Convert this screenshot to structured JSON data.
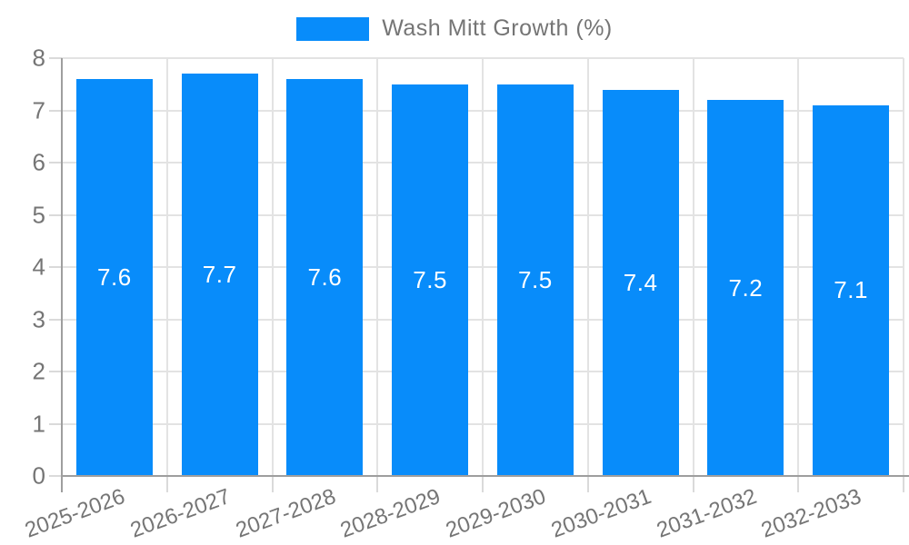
{
  "legend": {
    "items": [
      {
        "label": "Wash Mitt Growth (%)",
        "color": "#088cfa"
      }
    ]
  },
  "chart_data": {
    "type": "bar",
    "title": "",
    "categories": [
      "2025-2026",
      "2026-2027",
      "2027-2028",
      "2028-2029",
      "2029-2030",
      "2030-2031",
      "2031-2032",
      "2032-2033"
    ],
    "series": [
      {
        "name": "Wash Mitt Growth (%)",
        "values": [
          7.6,
          7.7,
          7.6,
          7.5,
          7.5,
          7.4,
          7.2,
          7.1
        ]
      }
    ],
    "data_labels": [
      "7.6",
      "7.7",
      "7.6",
      "7.5",
      "7.5",
      "7.4",
      "7.2",
      "7.1"
    ],
    "xlabel": "",
    "ylabel": "",
    "ylim": [
      0,
      8
    ],
    "yticks": [
      0,
      1,
      2,
      3,
      4,
      5,
      6,
      7,
      8
    ],
    "grid": true,
    "legend_position": "top",
    "x_label_rotation_deg": -20,
    "colors": {
      "bar": "#088cfa",
      "grid": "#e3e3e3",
      "axis": "#9e9e9e",
      "tick": "#dadada",
      "text": "#757575",
      "value_label": "#ffffff",
      "background": "#ffffff"
    }
  }
}
